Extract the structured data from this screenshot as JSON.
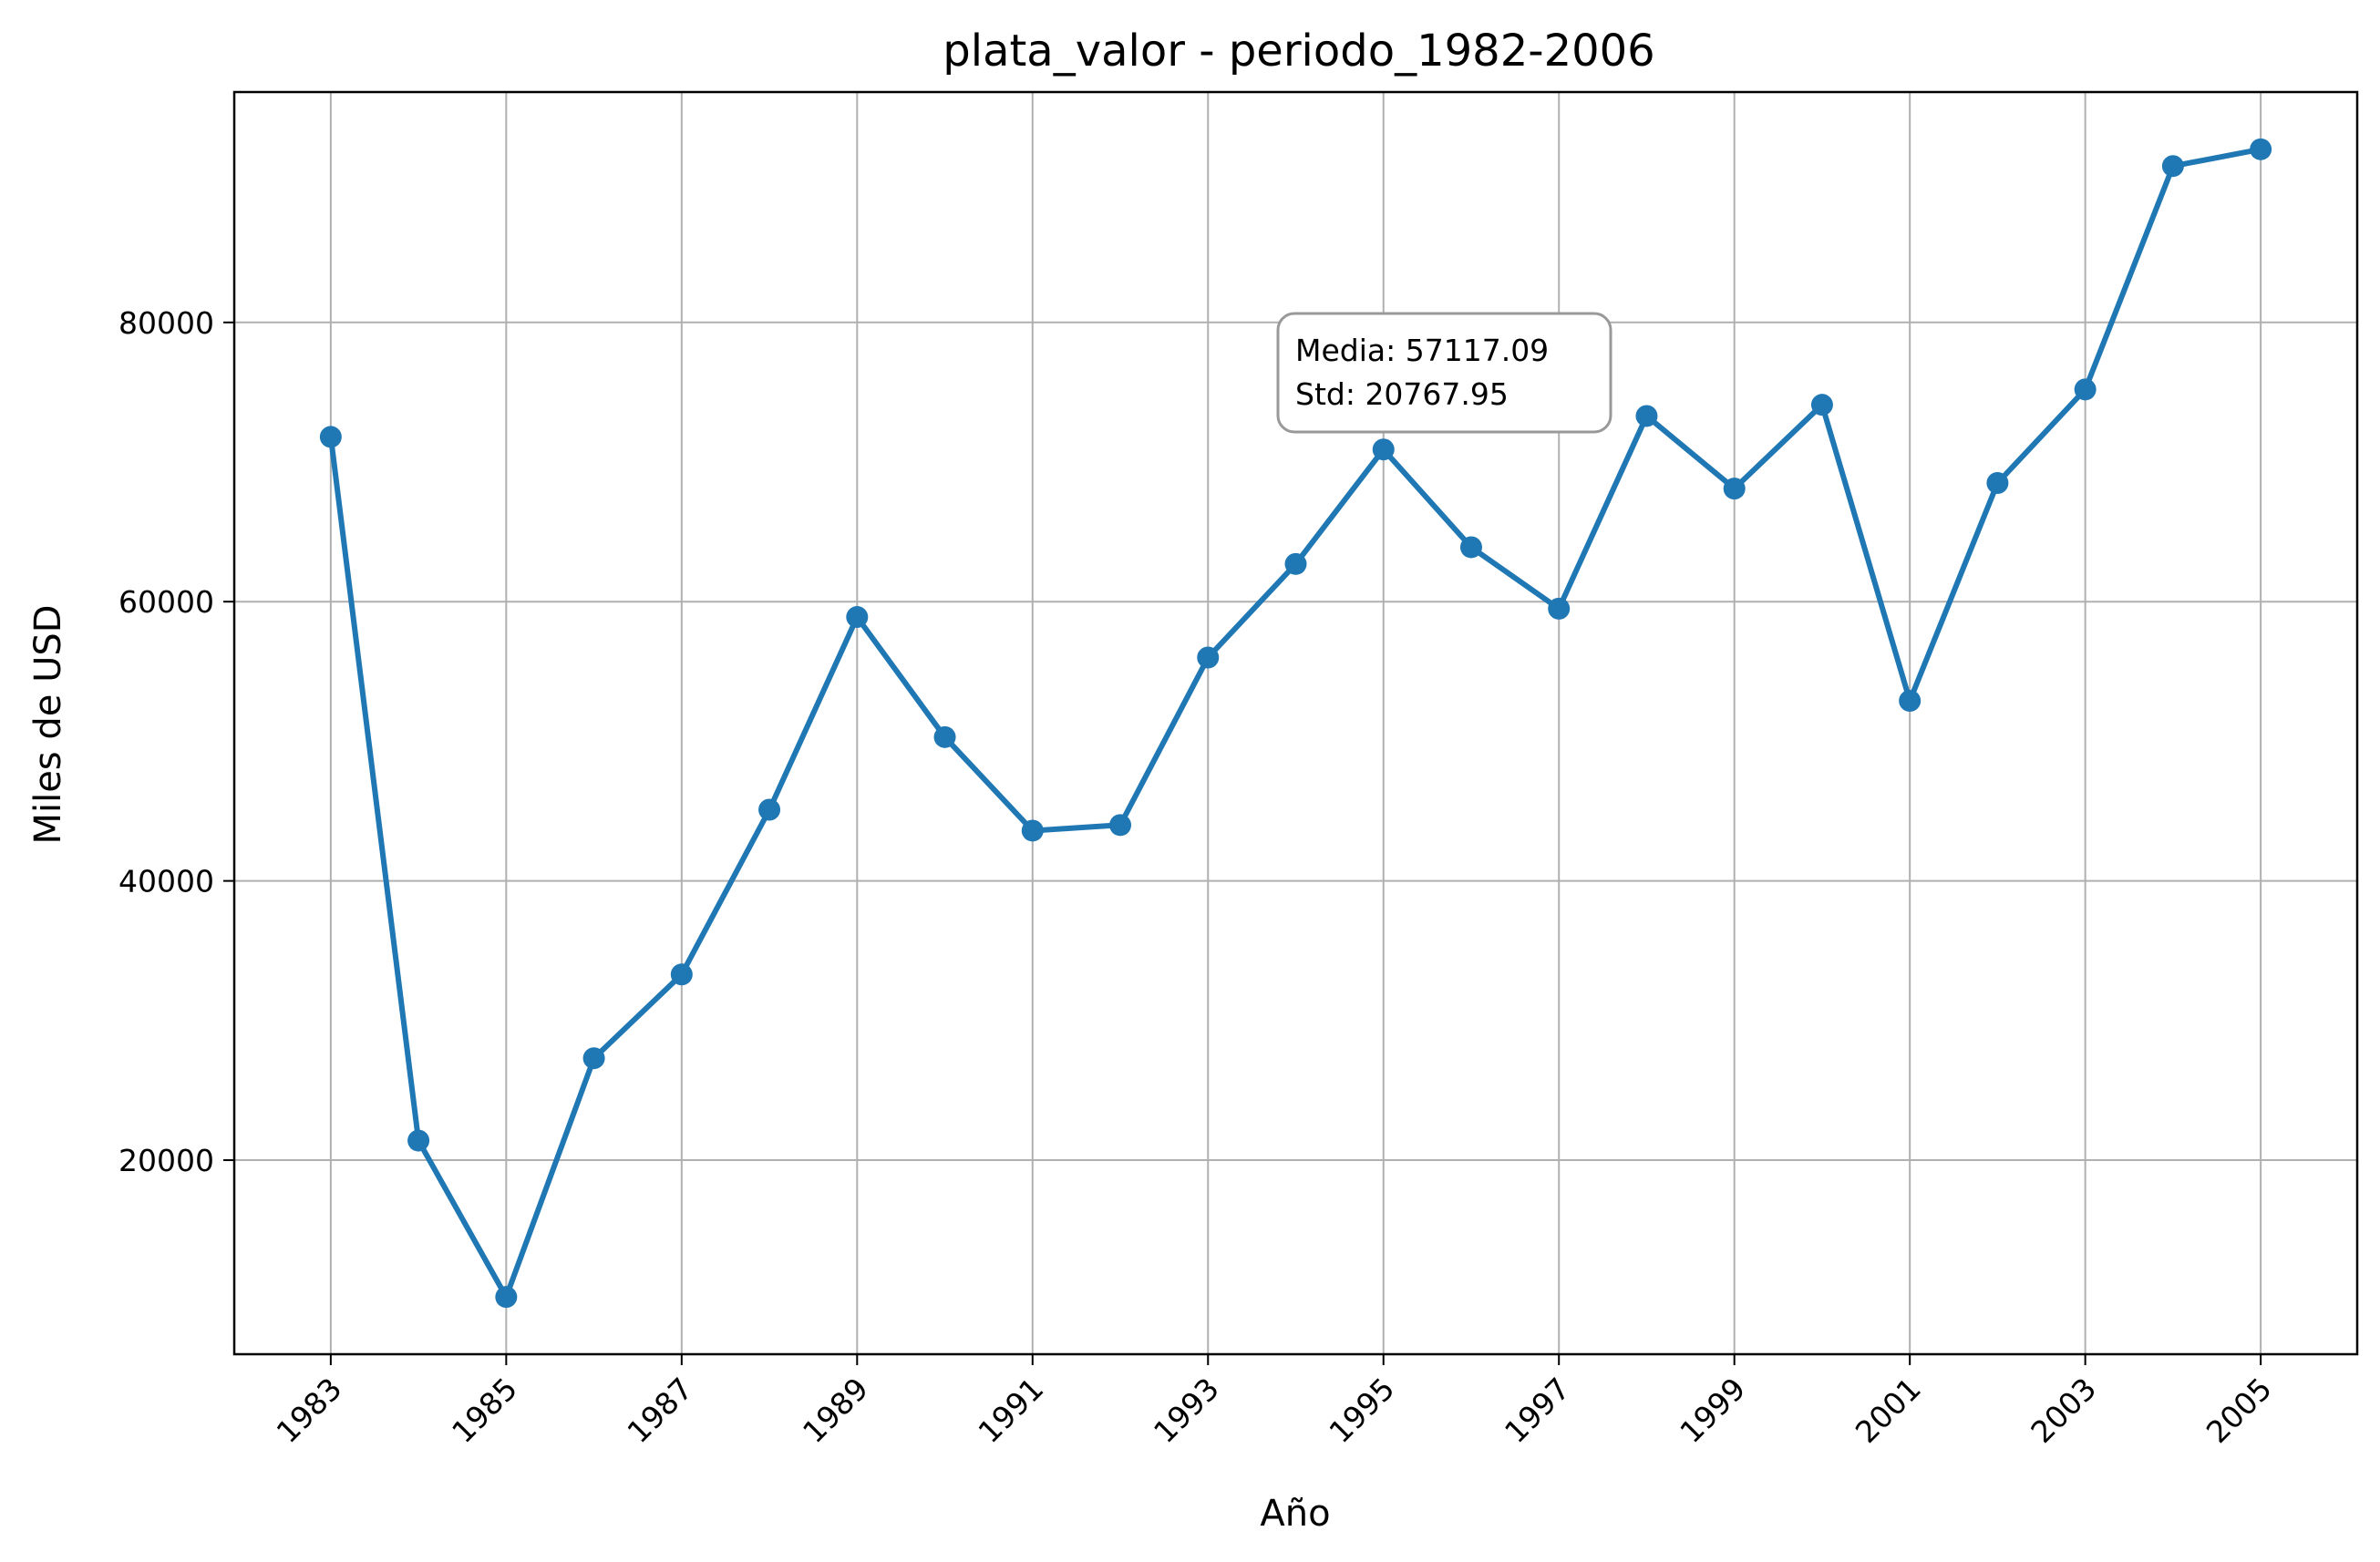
{
  "chart_data": {
    "type": "line",
    "title": "plata_valor - periodo_1982-2006",
    "xlabel": "Año",
    "ylabel": "Miles de USD",
    "x": [
      1983,
      1984,
      1985,
      1986,
      1987,
      1988,
      1989,
      1990,
      1991,
      1992,
      1993,
      1994,
      1995,
      1996,
      1997,
      1998,
      1999,
      2000,
      2001,
      2002,
      2003,
      2004,
      2005
    ],
    "series": [
      {
        "values": [
          71800,
          21400,
          10200,
          27300,
          33300,
          45100,
          58900,
          50300,
          43600,
          44000,
          56000,
          62700,
          70900,
          63900,
          59500,
          73300,
          68100,
          74100,
          52900,
          68500,
          75200,
          91200,
          92400
        ],
        "color": "#1f77b4",
        "marker": "circle"
      }
    ],
    "xticks": [
      "1983",
      "1985",
      "1987",
      "1989",
      "1991",
      "1993",
      "1995",
      "1997",
      "1999",
      "2001",
      "2003",
      "2005"
    ],
    "yticks": [
      "20000",
      "40000",
      "60000",
      "80000"
    ],
    "xlim": [
      1981.9,
      2006.1
    ],
    "ylim": [
      6100,
      96500
    ],
    "grid": true,
    "annotation": {
      "lines": [
        "Media: 57117.09",
        "Std: 20767.95"
      ]
    }
  }
}
